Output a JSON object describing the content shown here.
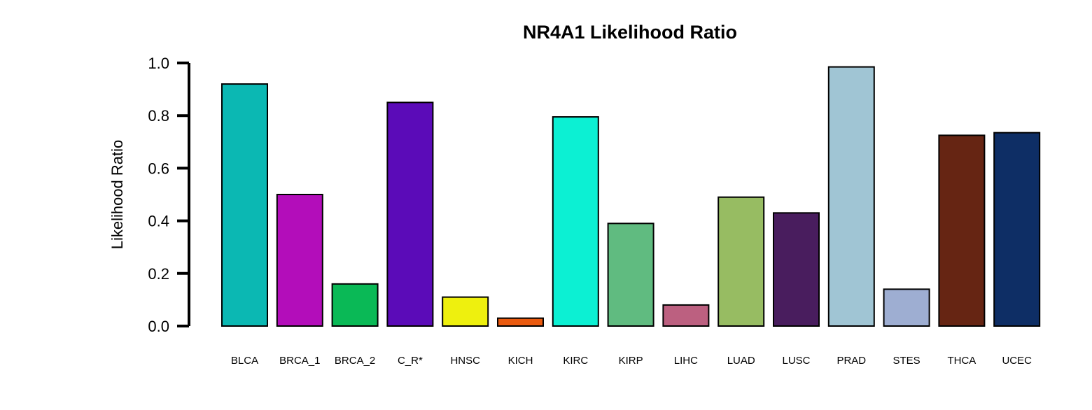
{
  "chart_data": {
    "type": "bar",
    "title": "NR4A1 Likelihood Ratio",
    "xlabel": "",
    "ylabel": "Likelihood Ratio",
    "ylim": [
      0,
      1.0
    ],
    "yticks": [
      "0.0",
      "0.2",
      "0.4",
      "0.6",
      "0.8",
      "1.0"
    ],
    "grid": false,
    "legend": "none",
    "categories": [
      "BLCA",
      "BRCA_1",
      "BRCA_2",
      "C_R*",
      "HNSC",
      "KICH",
      "KIRC",
      "KIRP",
      "LIHC",
      "LUAD",
      "LUSC",
      "PRAD",
      "STES",
      "THCA",
      "UCEC"
    ],
    "values": [
      0.92,
      0.5,
      0.16,
      0.85,
      0.11,
      0.03,
      0.795,
      0.39,
      0.08,
      0.49,
      0.43,
      0.985,
      0.14,
      0.725,
      0.735
    ],
    "colors": [
      "#0BB8B3",
      "#B30DBA",
      "#0AB956",
      "#5B0BB8",
      "#EEF00E",
      "#EA5A0F",
      "#0CF0D3",
      "#60BB80",
      "#BC6080",
      "#97BC62",
      "#491D5E",
      "#A0C5D4",
      "#9EAED2",
      "#662513",
      "#0E2E65"
    ]
  }
}
